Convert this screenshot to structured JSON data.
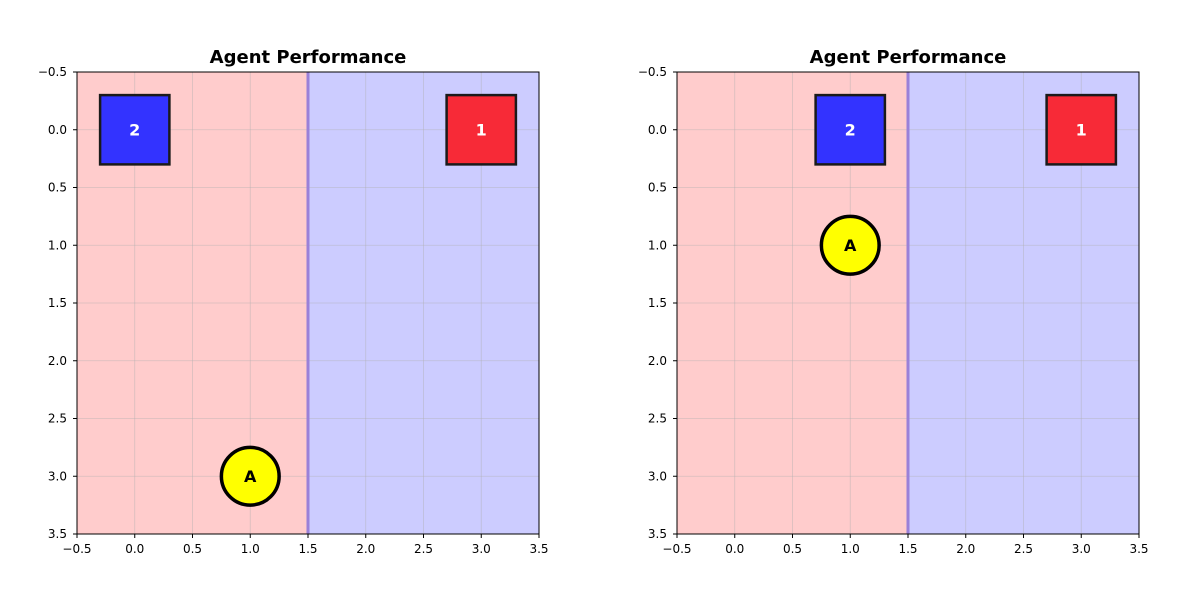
{
  "chart_data": [
    {
      "type": "scatter",
      "title": "Agent Performance",
      "xlim": [
        -0.5,
        3.5
      ],
      "ylim": [
        3.5,
        -0.5
      ],
      "y_inverted": true,
      "xticks": [
        "−0.5",
        "0.0",
        "0.5",
        "1.0",
        "1.5",
        "2.0",
        "2.5",
        "3.0",
        "3.5"
      ],
      "yticks": [
        "−0.5",
        "0.0",
        "0.5",
        "1.0",
        "1.5",
        "2.0",
        "2.5",
        "3.0",
        "3.5"
      ],
      "grid": true,
      "regions": [
        {
          "x_range": [
            -0.5,
            1.5
          ],
          "color": "#ffcccc"
        },
        {
          "x_range": [
            1.5,
            3.5
          ],
          "color": "#ccccff"
        }
      ],
      "divider_x": 1.5,
      "boxes": [
        {
          "label": "2",
          "x": 0.0,
          "y": 0.0,
          "color": "#3333ff"
        },
        {
          "label": "1",
          "x": 3.0,
          "y": 0.0,
          "color": "#f72a37"
        }
      ],
      "agent": {
        "label": "A",
        "x": 1.0,
        "y": 3.0,
        "color": "#ffff00"
      }
    },
    {
      "type": "scatter",
      "title": "Agent Performance",
      "xlim": [
        -0.5,
        3.5
      ],
      "ylim": [
        3.5,
        -0.5
      ],
      "y_inverted": true,
      "xticks": [
        "−0.5",
        "0.0",
        "0.5",
        "1.0",
        "1.5",
        "2.0",
        "2.5",
        "3.0",
        "3.5"
      ],
      "yticks": [
        "−0.5",
        "0.0",
        "0.5",
        "1.0",
        "1.5",
        "2.0",
        "2.5",
        "3.0",
        "3.5"
      ],
      "grid": true,
      "regions": [
        {
          "x_range": [
            -0.5,
            1.5
          ],
          "color": "#ffcccc"
        },
        {
          "x_range": [
            1.5,
            3.5
          ],
          "color": "#ccccff"
        }
      ],
      "divider_x": 1.5,
      "boxes": [
        {
          "label": "2",
          "x": 1.0,
          "y": 0.0,
          "color": "#3333ff"
        },
        {
          "label": "1",
          "x": 3.0,
          "y": 0.0,
          "color": "#f72a37"
        }
      ],
      "agent": {
        "label": "A",
        "x": 1.0,
        "y": 1.0,
        "color": "#ffff00"
      }
    }
  ]
}
